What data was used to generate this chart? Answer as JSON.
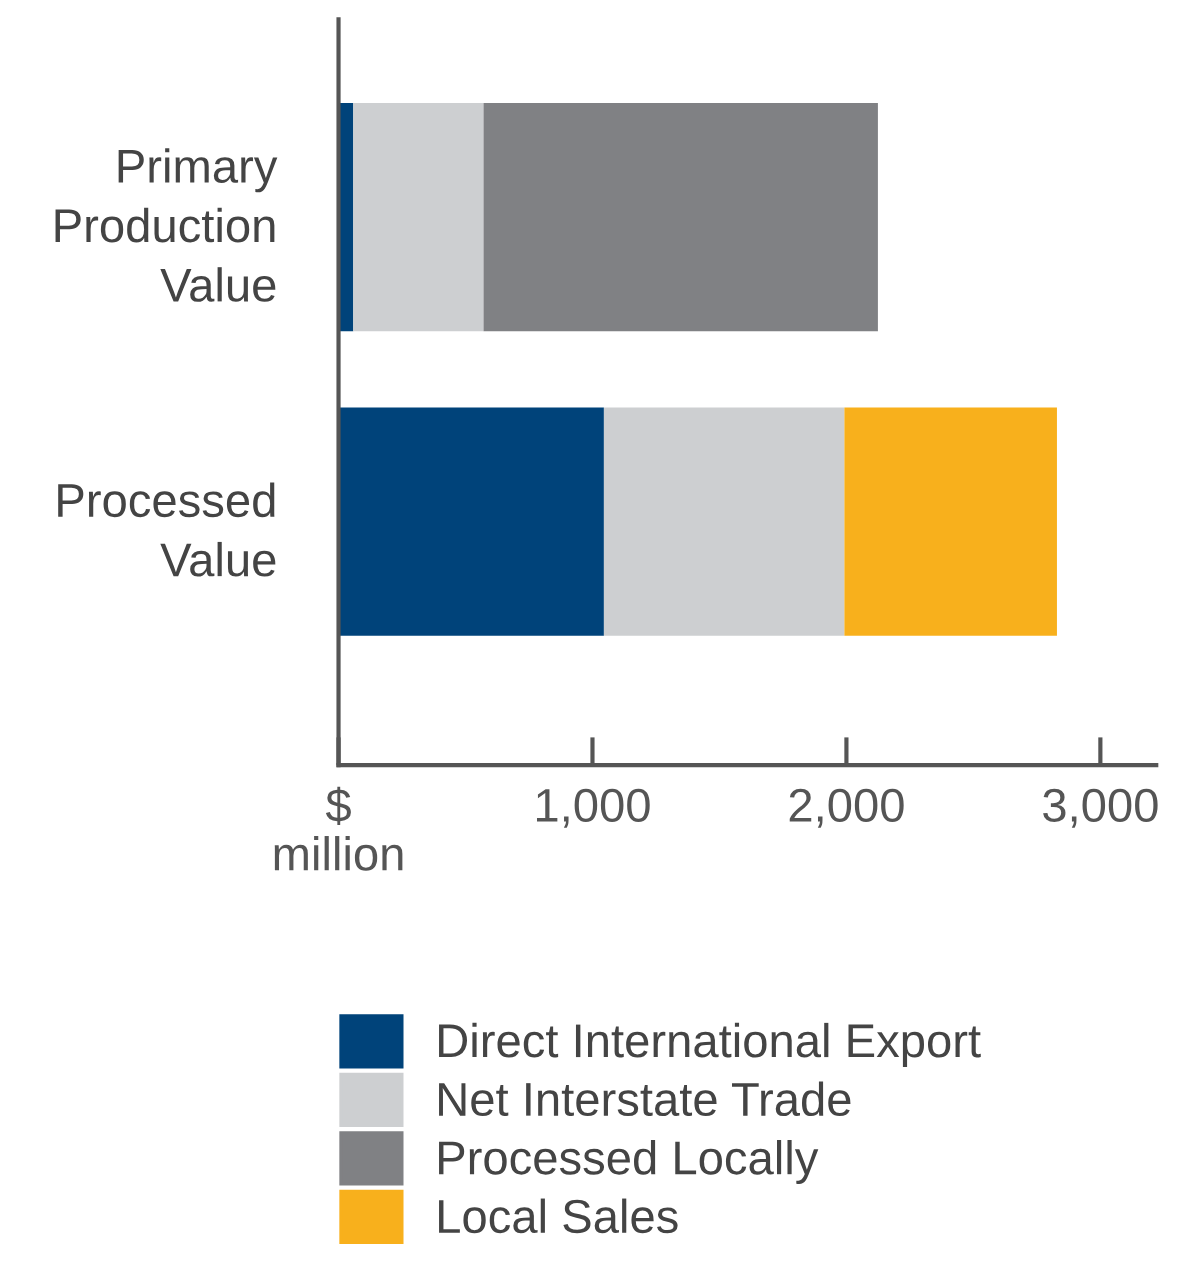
{
  "chart_data": {
    "type": "bar",
    "orientation": "horizontal",
    "stacked": true,
    "categories": [
      "Primary\nProduction\nValue",
      "Processed\nValue"
    ],
    "series": [
      {
        "name": "Direct International Export",
        "color": "#00437a",
        "values": [
          58,
          1045
        ]
      },
      {
        "name": "Net Interstate Trade",
        "color": "#cdcfd1",
        "values": [
          513,
          947
        ]
      },
      {
        "name": "Processed Locally",
        "color": "#808184",
        "values": [
          1553,
          null
        ]
      },
      {
        "name": "Local Sales",
        "color": "#f8b01c",
        "values": [
          null,
          837
        ]
      }
    ],
    "xlim": [
      0,
      3220
    ],
    "xticks": [
      {
        "value": 0,
        "label": "$"
      },
      {
        "value": 1000,
        "label": "1,000"
      },
      {
        "value": 2000,
        "label": "2,000"
      },
      {
        "value": 3000,
        "label": "3,000"
      }
    ],
    "xlabel": "million",
    "grid": false,
    "legend": "bottom"
  }
}
